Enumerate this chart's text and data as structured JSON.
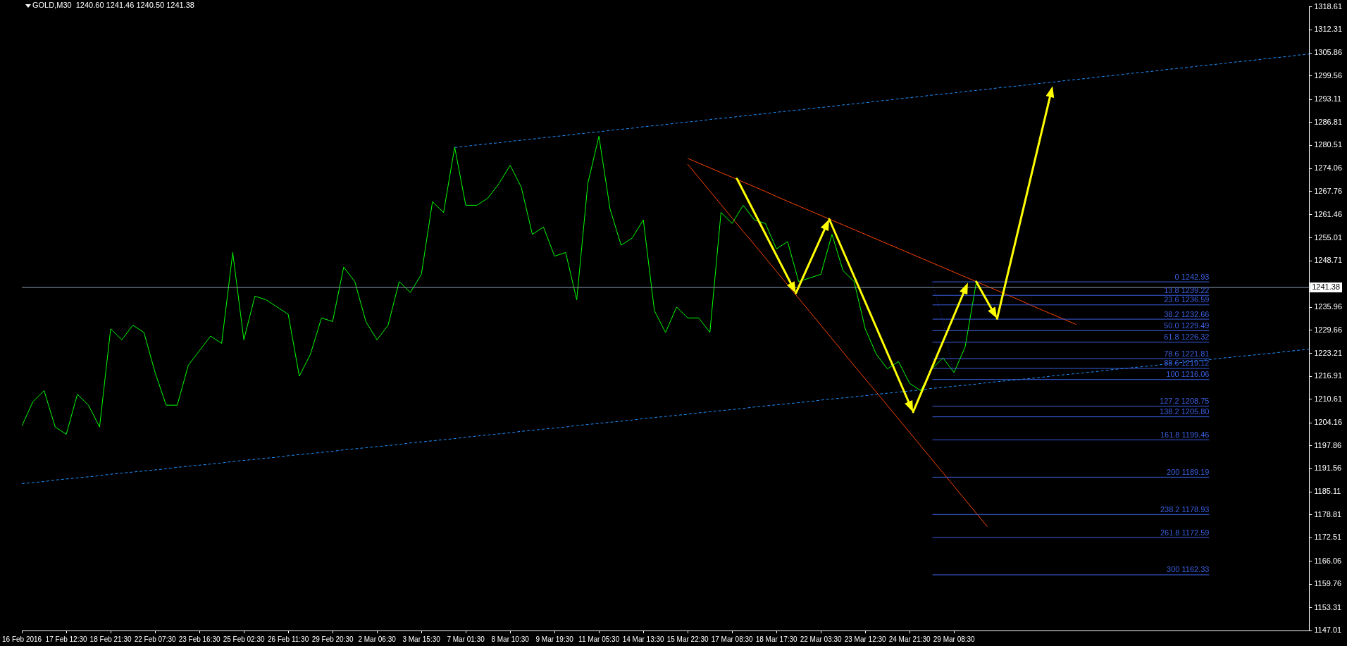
{
  "chart_data": {
    "type": "line",
    "title": "GOLD,M30  1240.60 1241.46 1240.50 1241.38",
    "legend": false,
    "grid": false,
    "categories": [
      "16 Feb 2016",
      null,
      null,
      null,
      "17 Feb 12:30",
      null,
      null,
      null,
      "18 Feb 21:30",
      null,
      null,
      null,
      "22 Feb 07:30",
      null,
      null,
      null,
      "23 Feb 16:30",
      null,
      null,
      null,
      "25 Feb 02:30",
      null,
      null,
      null,
      "26 Feb 11:30",
      null,
      null,
      null,
      "29 Feb 20:30",
      null,
      null,
      null,
      "2 Mar 06:30",
      null,
      null,
      null,
      "3 Mar 15:30",
      null,
      null,
      null,
      "7 Mar 01:30",
      null,
      null,
      null,
      "8 Mar 10:30",
      null,
      null,
      null,
      "9 Mar 19:30",
      null,
      null,
      null,
      "11 Mar 05:30",
      null,
      null,
      null,
      "14 Mar 13:30",
      null,
      null,
      null,
      "15 Mar 22:30",
      null,
      null,
      null,
      "17 Mar 08:30",
      null,
      null,
      null,
      "18 Mar 17:30",
      null,
      null,
      null,
      "22 Mar 03:30",
      null,
      null,
      null,
      "23 Mar 12:30",
      null,
      null,
      null,
      "24 Mar 21:30",
      null,
      null,
      null,
      "29 Mar 08:30",
      null,
      null,
      null,
      null,
      null,
      null,
      null,
      null,
      null,
      null,
      null,
      null,
      null,
      null,
      null,
      null,
      null,
      null,
      null,
      null,
      null,
      null,
      null,
      null,
      null,
      null,
      null,
      null,
      null,
      null,
      null,
      null
    ],
    "ylim": [
      1147.01,
      1318.61
    ],
    "yticks": [
      1318.61,
      1312.31,
      1305.86,
      1299.56,
      1293.11,
      1286.81,
      1280.51,
      1274.06,
      1267.76,
      1261.46,
      1255.01,
      1248.71,
      1235.96,
      1229.66,
      1223.21,
      1216.91,
      1210.61,
      1204.16,
      1197.86,
      1191.56,
      1185.11,
      1178.81,
      1172.51,
      1166.06,
      1159.76,
      1153.31,
      1147.01
    ],
    "ref_lines": [
      {
        "axis": "y",
        "value": 1241.38,
        "label": "1241.38",
        "color": "#8c9cb0"
      },
      {
        "axis": "y",
        "value": 1242.93,
        "label": "0 1242.93",
        "color": "#3b5fe0"
      },
      {
        "axis": "y",
        "value": 1239.22,
        "label": "13.8 1239.22",
        "color": "#3b5fe0"
      },
      {
        "axis": "y",
        "value": 1236.59,
        "label": "23.6 1236.59",
        "color": "#3b5fe0"
      },
      {
        "axis": "y",
        "value": 1232.66,
        "label": "38.2 1232.66",
        "color": "#3b5fe0"
      },
      {
        "axis": "y",
        "value": 1229.49,
        "label": "50.0 1229.49",
        "color": "#3b5fe0"
      },
      {
        "axis": "y",
        "value": 1226.32,
        "label": "61.8 1226.32",
        "color": "#3b5fe0"
      },
      {
        "axis": "y",
        "value": 1221.81,
        "label": "78.6 1221.81",
        "color": "#3b5fe0"
      },
      {
        "axis": "y",
        "value": 1219.12,
        "label": "88.6 1219.12",
        "color": "#3b5fe0"
      },
      {
        "axis": "y",
        "value": 1216.06,
        "label": "100 1216.06",
        "color": "#3b5fe0"
      },
      {
        "axis": "y",
        "value": 1208.75,
        "label": "127.2 1208.75",
        "color": "#3b5fe0"
      },
      {
        "axis": "y",
        "value": 1205.8,
        "label": "138.2 1205.80",
        "color": "#3b5fe0"
      },
      {
        "axis": "y",
        "value": 1199.46,
        "label": "161.8 1199.46",
        "color": "#3b5fe0"
      },
      {
        "axis": "y",
        "value": 1189.19,
        "label": "200 1189.19",
        "color": "#3b5fe0"
      },
      {
        "axis": "y",
        "value": 1178.93,
        "label": "238.2 1178.93",
        "color": "#3b5fe0"
      },
      {
        "axis": "y",
        "value": 1172.59,
        "label": "261.8 1172.59",
        "color": "#3b5fe0"
      },
      {
        "axis": "y",
        "value": 1162.33,
        "label": "300 1162.33",
        "color": "#3b5fe0"
      }
    ],
    "series": [
      {
        "color": "#00ff00",
        "values": [
          1203.3,
          1210,
          1213,
          1203,
          1201,
          1212,
          1209,
          1203,
          1230,
          1227,
          1231,
          1229,
          1218,
          1209,
          1209,
          1220,
          1224,
          1228,
          1226,
          1251,
          1227,
          1239,
          1238,
          1236,
          1234,
          1217,
          1223,
          1233,
          1232,
          1247,
          1243,
          1232,
          1227,
          1231,
          1243,
          1240,
          1245,
          1265,
          1262,
          1280,
          1264,
          1264,
          1266,
          1270,
          1275,
          1269,
          1256,
          1258,
          1250,
          1251,
          1238,
          1270,
          1283,
          1263,
          1253,
          1255,
          1260,
          1235,
          1229,
          1236,
          1233,
          1233,
          1229,
          1262,
          1259,
          1264,
          1260,
          1259,
          1252,
          1254,
          1243,
          1244,
          1245,
          1256,
          1246,
          1243,
          1230,
          1223,
          1219,
          1221,
          1215,
          1213,
          1219,
          1222,
          1218,
          1225,
          1242.7,
          null,
          null,
          null,
          null,
          null,
          null,
          null,
          null,
          null,
          null,
          null,
          null,
          null,
          null,
          null,
          null,
          null,
          null,
          null,
          null,
          null,
          null,
          null,
          null,
          null,
          null,
          null,
          null,
          null,
          null
        ]
      },
      {
        "color": "#1e90ff",
        "line_style": "dashed",
        "values": [
          null,
          null,
          null,
          null,
          null,
          null,
          null,
          null,
          null,
          null,
          null,
          null,
          null,
          null,
          null,
          null,
          null,
          null,
          null,
          null,
          null,
          null,
          null,
          null,
          null,
          null,
          null,
          null,
          null,
          null,
          null,
          null,
          null,
          null,
          null,
          null,
          null,
          null,
          null,
          1279.9,
          1280.2,
          1280.6,
          1280.9,
          1281.2,
          1281.6,
          1281.9,
          1282.2,
          1282.6,
          1282.9,
          1283.2,
          1283.6,
          1283.9,
          1284.2,
          1284.6,
          1284.9,
          1285.2,
          1285.6,
          1285.9,
          1286.2,
          1286.6,
          1286.9,
          1287.2,
          1287.6,
          1287.9,
          1288.2,
          1288.6,
          1288.9,
          1289.2,
          1289.6,
          1289.9,
          1290.2,
          1290.6,
          1290.9,
          1291.2,
          1291.6,
          1291.9,
          1292.2,
          1292.6,
          1292.9,
          1293.3,
          1293.6,
          1293.9,
          1294.3,
          1294.6,
          1294.9,
          1295.3,
          1295.6,
          1295.9,
          1296.3,
          1296.6,
          1296.9,
          1297.3,
          1297.6,
          1297.9,
          1298.3,
          1298.6,
          1298.9,
          1299.3,
          1299.6,
          1299.9,
          1300.3,
          1300.6,
          1300.9,
          1301.3,
          1301.6,
          1301.9,
          1302.3,
          1302.6,
          1302.9,
          1303.3,
          1303.6,
          1303.9,
          1304.3,
          1304.6,
          1304.9,
          1305.3,
          1305.6
        ]
      },
      {
        "color": "#1e90ff",
        "line_style": "dashed",
        "values": [
          1187.4,
          1187.7,
          1188.0,
          1188.4,
          1188.7,
          1189.0,
          1189.3,
          1189.6,
          1190.0,
          1190.3,
          1190.6,
          1190.9,
          1191.2,
          1191.5,
          1191.9,
          1192.2,
          1192.5,
          1192.8,
          1193.1,
          1193.5,
          1193.8,
          1194.1,
          1194.4,
          1194.7,
          1195.1,
          1195.4,
          1195.7,
          1196.0,
          1196.3,
          1196.7,
          1197.0,
          1197.3,
          1197.6,
          1197.9,
          1198.2,
          1198.6,
          1198.9,
          1199.2,
          1199.5,
          1199.8,
          1200.2,
          1200.5,
          1200.8,
          1201.1,
          1201.4,
          1201.8,
          1202.1,
          1202.4,
          1202.7,
          1203.0,
          1203.4,
          1203.7,
          1204.0,
          1204.3,
          1204.6,
          1204.9,
          1205.3,
          1205.6,
          1205.9,
          1206.2,
          1206.5,
          1206.9,
          1207.2,
          1207.5,
          1207.8,
          1208.1,
          1208.5,
          1208.8,
          1209.1,
          1209.4,
          1209.7,
          1210.0,
          1210.4,
          1210.7,
          1211.0,
          1211.3,
          1211.6,
          1212.0,
          1212.3,
          1212.6,
          1212.9,
          1213.2,
          1213.6,
          1213.9,
          1214.2,
          1214.5,
          1214.8,
          1215.2,
          1215.5,
          1215.8,
          1216.1,
          1216.4,
          1216.7,
          1217.1,
          1217.4,
          1217.7,
          1218.0,
          1218.3,
          1218.7,
          1219.0,
          1219.3,
          1219.6,
          1219.9,
          1220.3,
          1220.6,
          1220.9,
          1221.2,
          1221.5,
          1221.9,
          1222.2,
          1222.5,
          1222.8,
          1223.1,
          1223.4,
          1223.8,
          1224.1,
          1224.4
        ]
      },
      {
        "color": "#ff4500",
        "values": [
          null,
          null,
          null,
          null,
          null,
          null,
          null,
          null,
          null,
          null,
          null,
          null,
          null,
          null,
          null,
          null,
          null,
          null,
          null,
          null,
          null,
          null,
          null,
          null,
          null,
          null,
          null,
          null,
          null,
          null,
          null,
          null,
          null,
          null,
          null,
          null,
          null,
          null,
          null,
          null,
          null,
          null,
          null,
          null,
          null,
          null,
          null,
          null,
          null,
          null,
          null,
          null,
          null,
          null,
          null,
          null,
          null,
          null,
          null,
          null,
          1276.9,
          1275.6,
          1274.3,
          1273.0,
          1271.7,
          1270.4,
          1269.1,
          1267.8,
          1266.4,
          1265.1,
          1263.8,
          1262.5,
          1261.2,
          1259.9,
          1258.6,
          1257.3,
          1256.0,
          1254.7,
          1253.4,
          1252.1,
          1250.8,
          1249.5,
          1248.2,
          1246.9,
          1245.6,
          1244.3,
          1243.0,
          1241.7,
          1240.4,
          1239.1,
          1237.8,
          1236.4,
          1235.1,
          1233.8,
          1232.5,
          1231.2,
          null,
          null,
          null,
          null,
          null,
          null,
          null,
          null,
          null,
          null,
          null,
          null,
          null,
          null,
          null,
          null,
          null,
          null,
          null,
          null,
          null
        ]
      },
      {
        "color": "#ff4500",
        "values": [
          null,
          null,
          null,
          null,
          null,
          null,
          null,
          null,
          null,
          null,
          null,
          null,
          null,
          null,
          null,
          null,
          null,
          null,
          null,
          null,
          null,
          null,
          null,
          null,
          null,
          null,
          null,
          null,
          null,
          null,
          null,
          null,
          null,
          null,
          null,
          null,
          null,
          null,
          null,
          null,
          null,
          null,
          null,
          null,
          null,
          null,
          null,
          null,
          null,
          null,
          null,
          null,
          null,
          null,
          null,
          null,
          null,
          null,
          null,
          null,
          1275.3,
          1271.6,
          1267.9,
          1264.2,
          1260.5,
          1256.8,
          1253.2,
          1249.5,
          1245.8,
          1242.1,
          1238.4,
          1234.7,
          1231.0,
          1227.3,
          1223.6,
          1219.9,
          1216.2,
          1212.6,
          1208.9,
          1205.2,
          1201.5,
          1197.8,
          1194.1,
          1190.4,
          1186.7,
          1183.0,
          1179.3,
          1175.6,
          null,
          null,
          null,
          null,
          null,
          null,
          null,
          null,
          null,
          null,
          null,
          null,
          null,
          null,
          null,
          null,
          null,
          null,
          null,
          null,
          null,
          null,
          null,
          null,
          null,
          null,
          null,
          null,
          null
        ]
      },
      {
        "color": "#1c2fd0",
        "line_style": "dotted",
        "values": [
          null,
          null,
          null,
          null,
          null,
          null,
          null,
          null,
          null,
          null,
          null,
          null,
          null,
          null,
          null,
          null,
          null,
          null,
          null,
          null,
          null,
          null,
          null,
          null,
          null,
          null,
          null,
          null,
          null,
          null,
          null,
          null,
          null,
          null,
          null,
          null,
          null,
          null,
          null,
          null,
          null,
          null,
          null,
          null,
          null,
          null,
          null,
          null,
          null,
          null,
          null,
          null,
          null,
          null,
          null,
          null,
          null,
          null,
          null,
          null,
          null,
          null,
          null,
          null,
          null,
          null,
          null,
          null,
          null,
          null,
          null,
          null,
          null,
          null,
          null,
          null,
          null,
          null,
          null,
          null,
          null,
          null,
          1242.9,
          1232.3,
          1217.0,
          null,
          null,
          null,
          null,
          null,
          null,
          null,
          null,
          null,
          null,
          null,
          null,
          null,
          null,
          null,
          null,
          null,
          null,
          null,
          null,
          null,
          null,
          null,
          null,
          null,
          null,
          null,
          null,
          null,
          null,
          null,
          null
        ]
      }
    ]
  }
}
